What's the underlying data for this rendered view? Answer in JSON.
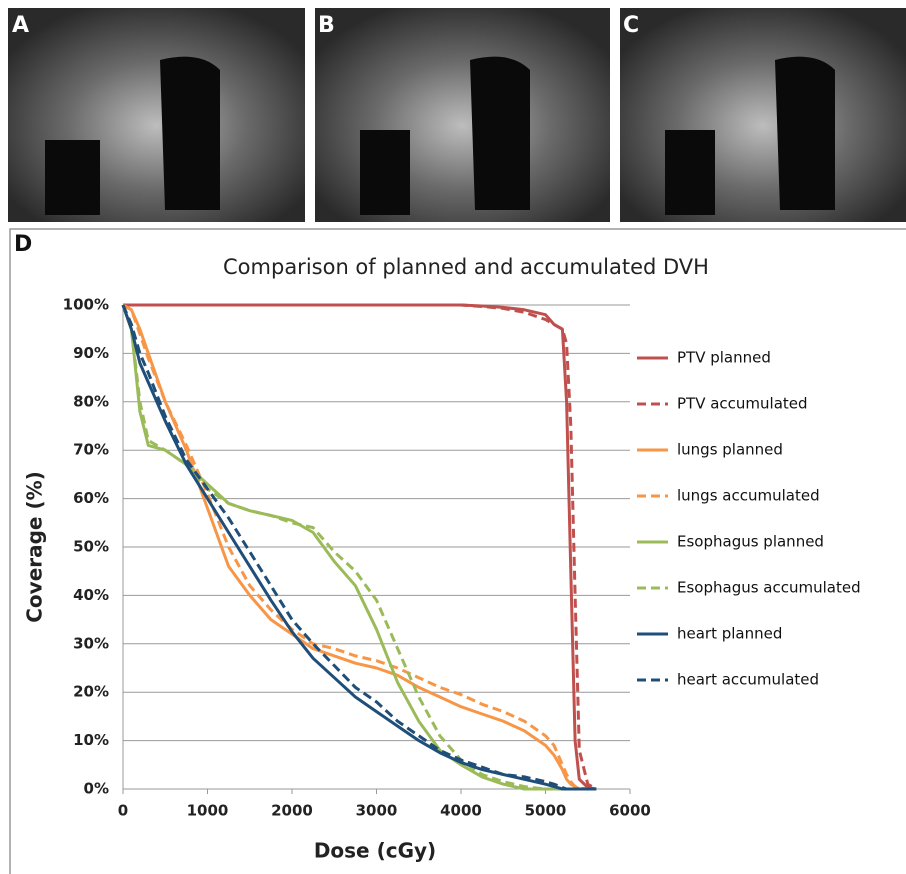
{
  "panels": [
    "A",
    "B",
    "C"
  ],
  "chart_data": {
    "type": "line",
    "panel_label": "D",
    "title": "Comparison of planned and accumulated DVH",
    "x_label": "Dose (cGy)",
    "y_label": "Coverage (%)",
    "xlim": [
      0,
      6000
    ],
    "xticks": [
      0,
      1000,
      2000,
      3000,
      4000,
      5000,
      6000
    ],
    "ylim": [
      0,
      100
    ],
    "yticks": [
      {
        "value": 0,
        "label": "0%"
      },
      {
        "value": 10,
        "label": "10%"
      },
      {
        "value": 20,
        "label": "20%"
      },
      {
        "value": 30,
        "label": "30%"
      },
      {
        "value": 40,
        "label": "40%"
      },
      {
        "value": 50,
        "label": "50%"
      },
      {
        "value": 60,
        "label": "60%"
      },
      {
        "value": 70,
        "label": "70%"
      },
      {
        "value": 80,
        "label": "80%"
      },
      {
        "value": 90,
        "label": "90%"
      },
      {
        "value": 100,
        "label": "100%"
      }
    ],
    "grid": true,
    "legend": "right",
    "x": [
      0,
      100,
      200,
      300,
      500,
      750,
      1000,
      1250,
      1500,
      1750,
      2000,
      2250,
      2500,
      2750,
      3000,
      3250,
      3500,
      3750,
      4000,
      4250,
      4500,
      4750,
      5000,
      5100,
      5200,
      5250,
      5300,
      5350,
      5400,
      5500,
      5600
    ],
    "series": [
      {
        "name": "PTV planned",
        "color": "#c0504d",
        "style": "solid",
        "values": [
          100,
          100,
          100,
          100,
          100,
          100,
          100,
          100,
          100,
          100,
          100,
          100,
          100,
          100,
          100,
          100,
          100,
          100,
          100,
          99.8,
          99.5,
          99,
          98,
          96,
          95,
          80,
          45,
          10,
          2,
          0.3,
          0
        ]
      },
      {
        "name": "PTV accumulated",
        "color": "#c0504d",
        "style": "dashed",
        "values": [
          100,
          100,
          100,
          100,
          100,
          100,
          100,
          100,
          100,
          100,
          100,
          100,
          100,
          100,
          100,
          100,
          100,
          100,
          100,
          99.7,
          99.3,
          98.5,
          97,
          96,
          95,
          92,
          75,
          40,
          8,
          1,
          0
        ]
      },
      {
        "name": "lungs planned",
        "color": "#f79646",
        "style": "solid",
        "values": [
          100,
          99,
          95,
          90,
          80,
          70,
          58,
          46,
          40,
          35,
          32,
          29,
          27.5,
          26,
          25,
          23.5,
          21,
          19,
          17,
          15.5,
          14,
          12,
          9,
          7,
          4,
          2,
          1,
          0.5,
          0,
          0,
          0
        ]
      },
      {
        "name": "lungs accumulated",
        "color": "#f79646",
        "style": "dashed",
        "values": [
          100,
          99,
          94,
          89,
          80,
          71,
          61,
          50,
          42,
          37,
          33,
          30,
          29,
          27.5,
          26.5,
          25,
          23,
          21,
          19.5,
          17.5,
          16,
          14,
          11,
          9,
          5,
          3,
          1.5,
          0.5,
          0.2,
          0,
          0
        ]
      },
      {
        "name": "Esophagus planned",
        "color": "#9bbb59",
        "style": "solid",
        "values": [
          100,
          95,
          78,
          71,
          70,
          67,
          63,
          59,
          57.5,
          56.5,
          55.5,
          53,
          47,
          42,
          33,
          22,
          14,
          8,
          5,
          2.5,
          1,
          0,
          0,
          0,
          0,
          0,
          0,
          0,
          0,
          0,
          0
        ]
      },
      {
        "name": "Esophagus accumulated",
        "color": "#9bbb59",
        "style": "dashed",
        "values": [
          100,
          95,
          80,
          72,
          70,
          67,
          62,
          59,
          57.5,
          56.5,
          55,
          54,
          49,
          45,
          39,
          29,
          19,
          11,
          6,
          3,
          1.5,
          0.5,
          0,
          0,
          0,
          0,
          0,
          0,
          0,
          0,
          0
        ]
      },
      {
        "name": "heart planned",
        "color": "#1f4e79",
        "style": "solid",
        "values": [
          100,
          95,
          88,
          84,
          76,
          67,
          60,
          53,
          46,
          39,
          32.5,
          27,
          23,
          19,
          16,
          13,
          10,
          7.5,
          5.5,
          4,
          3,
          2,
          1,
          0.5,
          0,
          0,
          0,
          0,
          0,
          0,
          0
        ]
      },
      {
        "name": "heart accumulated",
        "color": "#1f4e79",
        "style": "dashed",
        "values": [
          100,
          96,
          90,
          86,
          77,
          68,
          62,
          56,
          49,
          42,
          35,
          30,
          25.5,
          21,
          18,
          14,
          11,
          8,
          6,
          4.5,
          3,
          2.5,
          1.5,
          1,
          0.3,
          0,
          0,
          0,
          0,
          0,
          0
        ]
      }
    ]
  }
}
